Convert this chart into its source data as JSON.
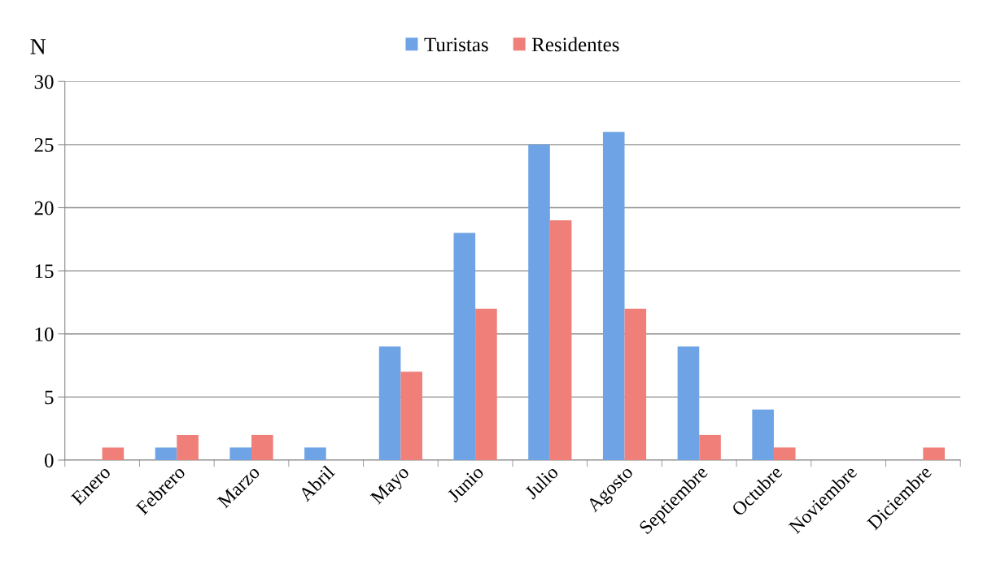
{
  "chart_data": {
    "type": "bar",
    "ylabel": "N",
    "categories": [
      "Enero",
      "Febrero",
      "Marzo",
      "Abril",
      "Mayo",
      "Junio",
      "Julio",
      "Agosto",
      "Septiembre",
      "Octubre",
      "Noviembre",
      "Diciembre"
    ],
    "series": [
      {
        "name": "Turistas",
        "color": "#6ea3e6",
        "values": [
          0,
          1,
          1,
          1,
          9,
          18,
          25,
          26,
          9,
          4,
          0,
          0
        ]
      },
      {
        "name": "Residentes",
        "color": "#ef7f78",
        "values": [
          1,
          2,
          2,
          0,
          7,
          12,
          19,
          12,
          2,
          1,
          0,
          1
        ]
      }
    ],
    "ylim": [
      0,
      30
    ],
    "yticks": [
      0,
      5,
      10,
      15,
      20,
      25,
      30
    ],
    "grid": "y",
    "legend": "top"
  }
}
